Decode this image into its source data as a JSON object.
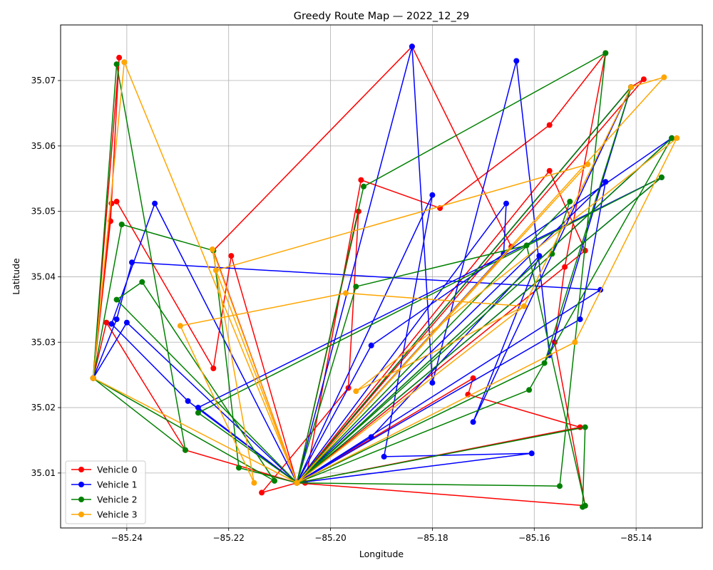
{
  "chart_data": {
    "type": "line",
    "title": "Greedy Route Map — 2022_12_29",
    "xlabel": "Longitude",
    "ylabel": "Latitude",
    "xlim": [
      -85.253,
      -85.127
    ],
    "ylim": [
      35.0016,
      35.0785
    ],
    "xticks": [
      -85.24,
      -85.22,
      -85.2,
      -85.18,
      -85.16,
      -85.14
    ],
    "xtick_labels": [
      "−85.24",
      "−85.22",
      "−85.20",
      "−85.18",
      "−85.16",
      "−85.14"
    ],
    "yticks": [
      35.01,
      35.02,
      35.03,
      35.04,
      35.05,
      35.06,
      35.07
    ],
    "ytick_labels": [
      "35.01",
      "35.02",
      "35.03",
      "35.04",
      "35.05",
      "35.06",
      "35.07"
    ],
    "grid": true,
    "legend_position": "bottom-left",
    "series": [
      {
        "name": "Vehicle 0",
        "color": "#ff0000",
        "points": [
          [
            -85.2466,
            35.0245
          ],
          [
            -85.2415,
            35.0735
          ],
          [
            -85.2432,
            35.0485
          ],
          [
            -85.2466,
            35.0245
          ],
          [
            -85.243,
            35.0512
          ],
          [
            -85.242,
            35.0515
          ],
          [
            -85.223,
            35.026
          ],
          [
            -85.2195,
            35.0432
          ],
          [
            -85.2066,
            35.0085
          ],
          [
            -85.205,
            35.0085
          ],
          [
            -85.194,
            35.0548
          ],
          [
            -85.1785,
            35.0505
          ],
          [
            -85.157,
            35.0632
          ],
          [
            -85.146,
            35.0742
          ],
          [
            -85.154,
            35.0415
          ],
          [
            -85.156,
            35.03
          ],
          [
            -85.15,
            35.005
          ],
          [
            -85.2066,
            35.0085
          ],
          [
            -85.172,
            35.0245
          ],
          [
            -85.173,
            35.022
          ],
          [
            -85.151,
            35.017
          ],
          [
            -85.2066,
            35.0085
          ],
          [
            -85.1945,
            35.05
          ],
          [
            -85.1965,
            35.023
          ],
          [
            -85.2135,
            35.007
          ],
          [
            -85.2066,
            35.0085
          ],
          [
            -85.1645,
            35.0446
          ],
          [
            -85.184,
            35.0752
          ],
          [
            -85.223,
            35.044
          ],
          [
            -85.2066,
            35.0085
          ],
          [
            -85.141,
            35.069
          ],
          [
            -85.1385,
            35.0702
          ],
          [
            -85.2066,
            35.0085
          ],
          [
            -85.15,
            35.044
          ],
          [
            -85.157,
            35.0562
          ],
          [
            -85.2066,
            35.0085
          ],
          [
            -85.2285,
            35.0135
          ],
          [
            -85.244,
            35.033
          ],
          [
            -85.2466,
            35.0245
          ]
        ]
      },
      {
        "name": "Vehicle 1",
        "color": "#0000ff",
        "points": [
          [
            -85.2466,
            35.0245
          ],
          [
            -85.242,
            35.0335
          ],
          [
            -85.239,
            35.0422
          ],
          [
            -85.147,
            35.038
          ],
          [
            -85.2066,
            35.0085
          ],
          [
            -85.2345,
            35.0512
          ],
          [
            -85.243,
            35.0328
          ],
          [
            -85.228,
            35.021
          ],
          [
            -85.2066,
            35.0085
          ],
          [
            -85.18,
            35.0525
          ],
          [
            -85.1895,
            35.0125
          ],
          [
            -85.1605,
            35.013
          ],
          [
            -85.2066,
            35.0085
          ],
          [
            -85.184,
            35.0752
          ],
          [
            -85.18,
            35.0238
          ],
          [
            -85.1635,
            35.073
          ],
          [
            -85.157,
            35.028
          ],
          [
            -85.141,
            35.069
          ],
          [
            -85.2066,
            35.0085
          ],
          [
            -85.1655,
            35.0512
          ],
          [
            -85.166,
            35.0435
          ],
          [
            -85.2066,
            35.0085
          ],
          [
            -85.146,
            35.0545
          ],
          [
            -85.151,
            35.0335
          ],
          [
            -85.2066,
            35.0085
          ],
          [
            -85.135,
            35.0552
          ],
          [
            -85.226,
            35.02
          ],
          [
            -85.2066,
            35.0085
          ],
          [
            -85.192,
            35.0155
          ],
          [
            -85.159,
            35.0432
          ],
          [
            -85.172,
            35.0178
          ],
          [
            -85.141,
            35.069
          ],
          [
            -85.2066,
            35.0085
          ],
          [
            -85.133,
            35.0612
          ],
          [
            -85.192,
            35.0295
          ],
          [
            -85.2066,
            35.0085
          ],
          [
            -85.24,
            35.033
          ],
          [
            -85.2466,
            35.0245
          ]
        ]
      },
      {
        "name": "Vehicle 2",
        "color": "#008000",
        "points": [
          [
            -85.2466,
            35.0245
          ],
          [
            -85.242,
            35.0725
          ],
          [
            -85.2285,
            35.0135
          ],
          [
            -85.2466,
            35.0245
          ],
          [
            -85.241,
            35.048
          ],
          [
            -85.223,
            35.044
          ],
          [
            -85.218,
            35.0108
          ],
          [
            -85.2066,
            35.0085
          ],
          [
            -85.1935,
            35.0538
          ],
          [
            -85.146,
            35.0742
          ],
          [
            -85.155,
            35.008
          ],
          [
            -85.2066,
            35.0085
          ],
          [
            -85.195,
            35.0385
          ],
          [
            -85.1615,
            35.0448
          ],
          [
            -85.15,
            35.005
          ],
          [
            -85.1505,
            35.0048
          ],
          [
            -85.15,
            35.017
          ],
          [
            -85.2066,
            35.0085
          ],
          [
            -85.133,
            35.0612
          ],
          [
            -85.161,
            35.0227
          ],
          [
            -85.2066,
            35.0085
          ],
          [
            -85.1565,
            35.0435
          ],
          [
            -85.153,
            35.0515
          ],
          [
            -85.2066,
            35.0085
          ],
          [
            -85.135,
            35.0552
          ],
          [
            -85.226,
            35.0192
          ],
          [
            -85.2066,
            35.0085
          ],
          [
            -85.158,
            35.0268
          ],
          [
            -85.141,
            35.069
          ],
          [
            -85.2066,
            35.0085
          ],
          [
            -85.242,
            35.0365
          ],
          [
            -85.237,
            35.0392
          ],
          [
            -85.211,
            35.0088
          ],
          [
            -85.2466,
            35.0245
          ]
        ]
      },
      {
        "name": "Vehicle 3",
        "color": "#ffa500",
        "points": [
          [
            -85.2466,
            35.0245
          ],
          [
            -85.2405,
            35.0728
          ],
          [
            -85.2066,
            35.0085
          ],
          [
            -85.2232,
            35.0442
          ],
          [
            -85.215,
            35.0085
          ],
          [
            -85.2295,
            35.0325
          ],
          [
            -85.197,
            35.0375
          ],
          [
            -85.162,
            35.0355
          ],
          [
            -85.141,
            35.069
          ],
          [
            -85.1345,
            35.0705
          ],
          [
            -85.2066,
            35.0085
          ],
          [
            -85.2225,
            35.041
          ],
          [
            -85.1495,
            35.0572
          ],
          [
            -85.2066,
            35.0085
          ],
          [
            -85.152,
            35.03
          ],
          [
            -85.132,
            35.0612
          ],
          [
            -85.195,
            35.0225
          ],
          [
            -85.162,
            35.0355
          ],
          [
            -85.2066,
            35.0085
          ],
          [
            -85.2466,
            35.0245
          ]
        ]
      }
    ]
  }
}
